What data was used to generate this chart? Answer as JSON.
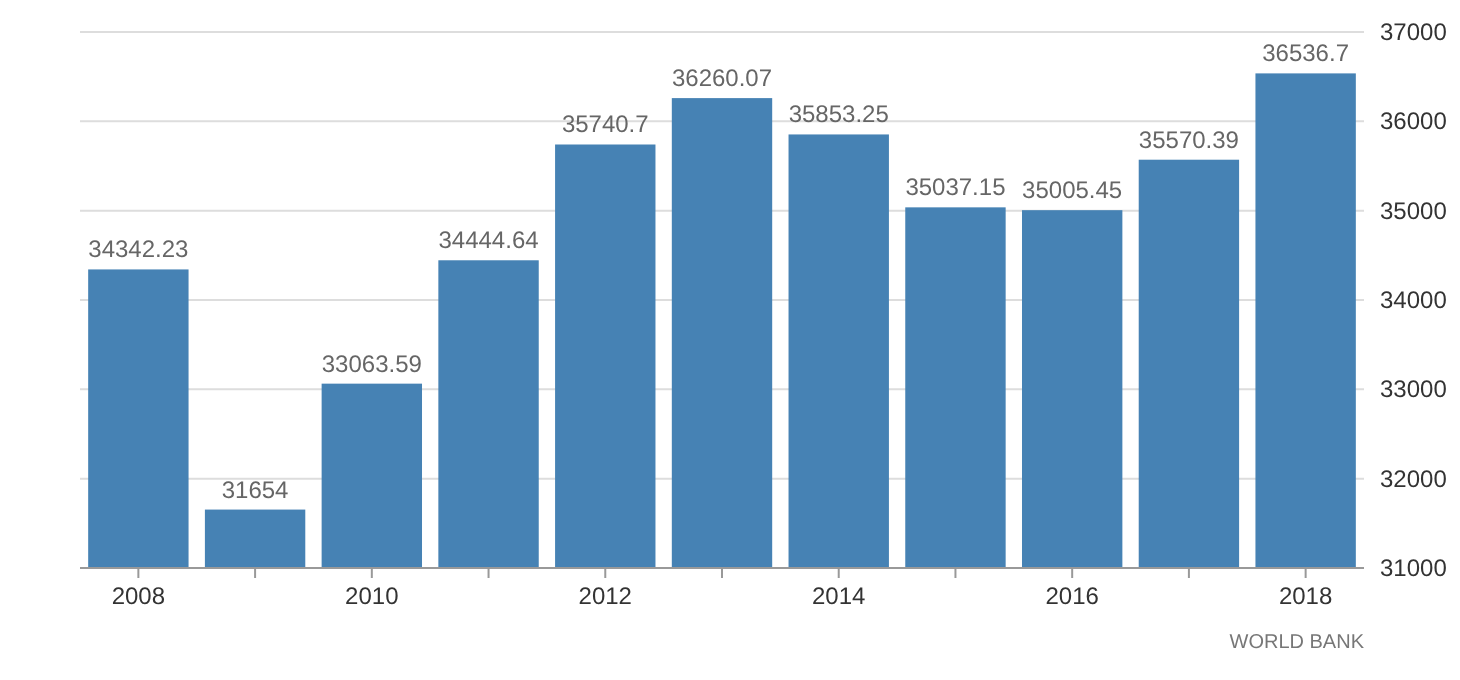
{
  "chart_data": {
    "type": "bar",
    "categories": [
      "2008",
      null,
      "2010",
      null,
      "2012",
      null,
      "2014",
      null,
      "2016",
      null,
      "2018"
    ],
    "values": [
      34342.23,
      31654,
      33063.59,
      34444.64,
      35740.7,
      36260.07,
      35853.25,
      35037.15,
      35005.45,
      35570.39,
      36536.7
    ],
    "color": "#4682b4",
    "ylim": [
      31000,
      37000
    ],
    "yticks": [
      31000,
      32000,
      33000,
      34000,
      35000,
      36000,
      37000
    ],
    "grid": "y",
    "data_labels": true,
    "annotations": [
      "WORLD BANK"
    ]
  }
}
